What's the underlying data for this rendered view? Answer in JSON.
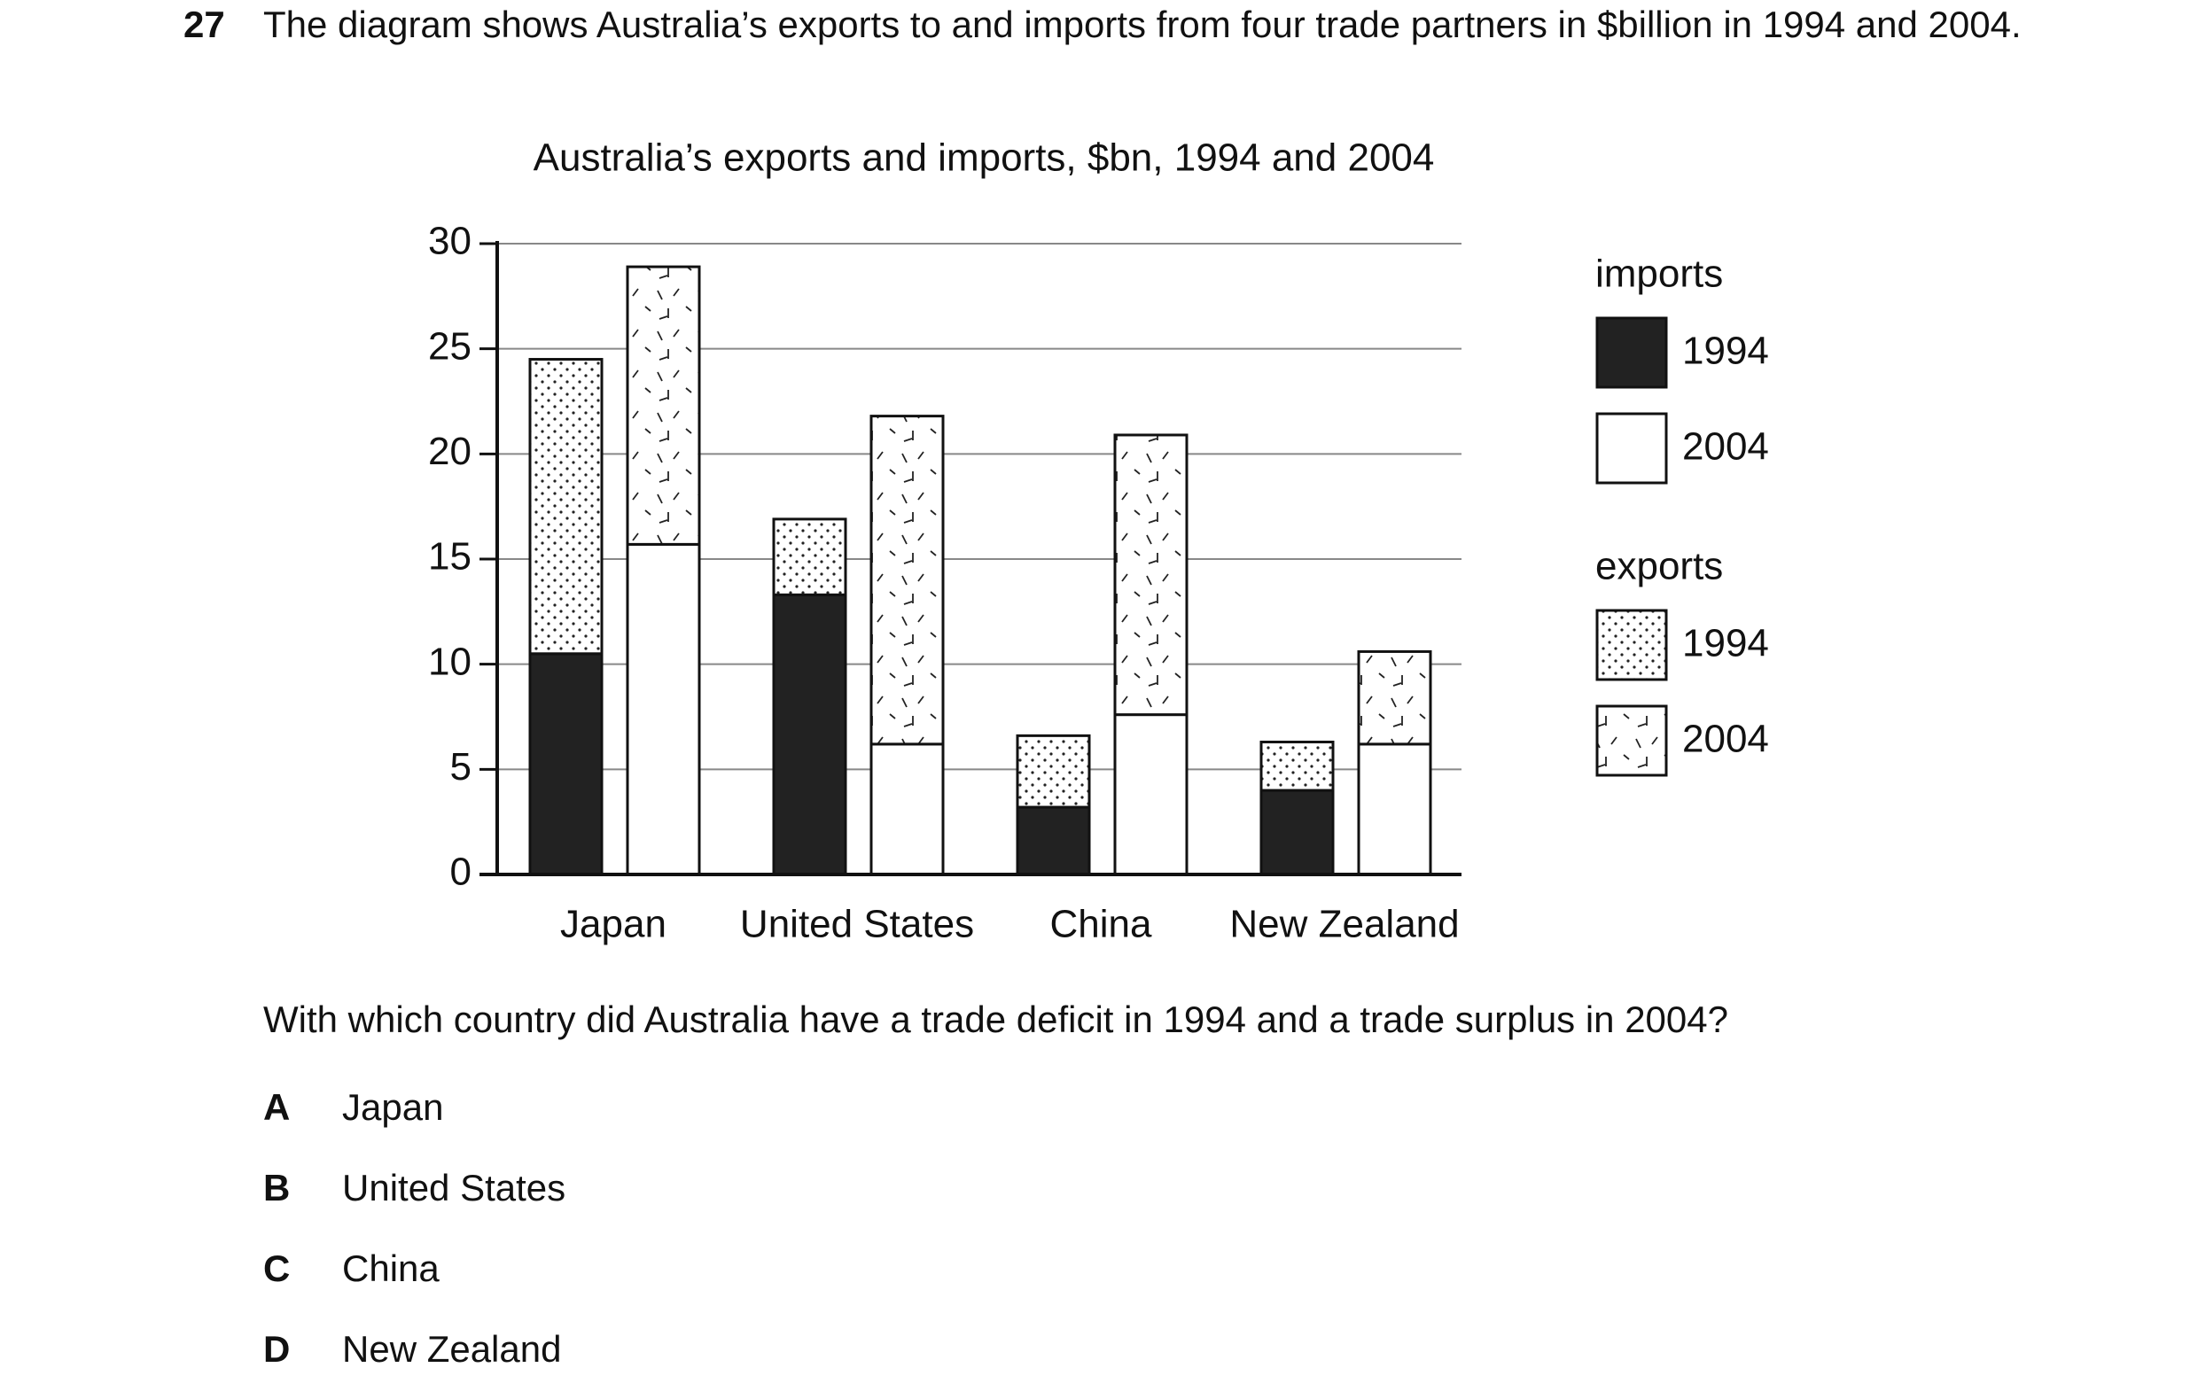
{
  "question": {
    "number": "27",
    "text": "The diagram shows Australia’s exports to and imports from four trade partners in $billion in 1994 and 2004."
  },
  "chart_data": {
    "type": "stacked-bar",
    "title": "Australia’s exports and imports, $bn, 1994 and 2004",
    "categories": [
      "Japan",
      "United States",
      "China",
      "New Zealand"
    ],
    "ylim": [
      0,
      30
    ],
    "yticks": [
      0,
      5,
      10,
      15,
      20,
      25,
      30
    ],
    "grid": true,
    "groups": [
      {
        "title": "imports",
        "series": [
          {
            "name": "1994",
            "color": "#222222",
            "values": [
              10.5,
              13.3,
              3.2,
              4.0
            ]
          },
          {
            "name": "2004",
            "color": "#ffffff",
            "values": [
              15.7,
              6.2,
              7.6,
              6.2
            ]
          }
        ]
      },
      {
        "title": "exports",
        "series": [
          {
            "name": "1994",
            "pattern": "dots",
            "values": [
              14.0,
              3.6,
              3.4,
              2.3
            ]
          },
          {
            "name": "2004",
            "pattern": "dashes",
            "values": [
              13.2,
              15.6,
              13.3,
              4.4
            ]
          }
        ]
      }
    ]
  },
  "prompt": "With which country did Australia have a trade deficit in 1994 and a trade surplus in 2004?",
  "options": [
    {
      "letter": "A",
      "text": "Japan"
    },
    {
      "letter": "B",
      "text": "United States"
    },
    {
      "letter": "C",
      "text": "China"
    },
    {
      "letter": "D",
      "text": "New Zealand"
    }
  ]
}
